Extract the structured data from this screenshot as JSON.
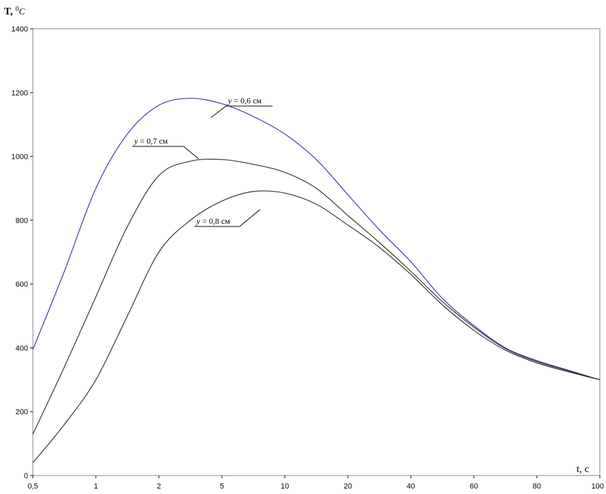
{
  "chart_data": {
    "type": "line",
    "ylabel_prefix": "T,",
    "ylabel_sup": "0",
    "ylabel_unit": "C",
    "xlabel": "t, c",
    "x_ticks": [
      "0,5",
      "1",
      "2",
      "5",
      "10",
      "20",
      "40",
      "60",
      "80",
      "100"
    ],
    "y_ticks": [
      "0",
      "200",
      "400",
      "600",
      "800",
      "1000",
      "1200",
      "1400"
    ],
    "ylim": [
      0,
      1400
    ],
    "grid": false,
    "colors": {
      "y06": "#2f3f9f",
      "y07": "#333333",
      "y08": "#333333",
      "axis": "#808080"
    },
    "series": [
      {
        "name": "y = 0,6 см",
        "name_var": "y",
        "name_rest": " = 0,6 см",
        "values": [
          395,
          640,
          900,
          1070,
          1160,
          1182,
          1165,
          1125,
          1070,
          990,
          880,
          770,
          670,
          555,
          470,
          400,
          360,
          330,
          300
        ]
      },
      {
        "name": "y = 0,7 см",
        "name_var": "y",
        "name_rest": " = 0,7 см",
        "values": [
          130,
          340,
          560,
          780,
          940,
          985,
          990,
          975,
          950,
          900,
          815,
          730,
          640,
          545,
          465,
          398,
          357,
          328,
          300
        ]
      },
      {
        "name": "y = 0,8 см",
        "name_var": "y",
        "name_rest": " = 0,8 см",
        "values": [
          40,
          160,
          300,
          500,
          700,
          800,
          860,
          890,
          885,
          850,
          785,
          715,
          630,
          535,
          455,
          393,
          353,
          325,
          300
        ]
      }
    ]
  }
}
